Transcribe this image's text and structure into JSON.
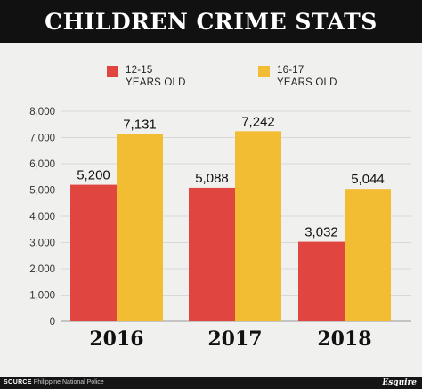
{
  "chart_data": {
    "type": "bar",
    "title": "CHILDREN CRIME STATS",
    "categories": [
      "2016",
      "2017",
      "2018"
    ],
    "series": [
      {
        "name": "12-15 YEARS OLD",
        "name_lines": [
          "12-15",
          "YEARS OLD"
        ],
        "color": "#e1453f",
        "values": [
          5200,
          5088,
          3032
        ],
        "labels": [
          "5,200",
          "5,088",
          "3,032"
        ]
      },
      {
        "name": "16-17 YEARS OLD",
        "name_lines": [
          "16-17",
          "YEARS OLD"
        ],
        "color": "#f2bd33",
        "values": [
          7131,
          7242,
          5044
        ],
        "labels": [
          "7,131",
          "7,242",
          "5,044"
        ]
      }
    ],
    "yticks": [
      0,
      1000,
      2000,
      3000,
      4000,
      5000,
      6000,
      7000,
      8000
    ],
    "ytick_labels": [
      "0",
      "1,000",
      "2,000",
      "3,000",
      "4,000",
      "5,000",
      "6,000",
      "7,000",
      "8,000"
    ],
    "ylim": [
      0,
      8000
    ],
    "grid": true,
    "legend_position": "top",
    "xlabel": "",
    "ylabel": ""
  },
  "footer": {
    "source_label": "SOURCE",
    "source_text": "Philippine National Police",
    "brand": "Esquire"
  }
}
